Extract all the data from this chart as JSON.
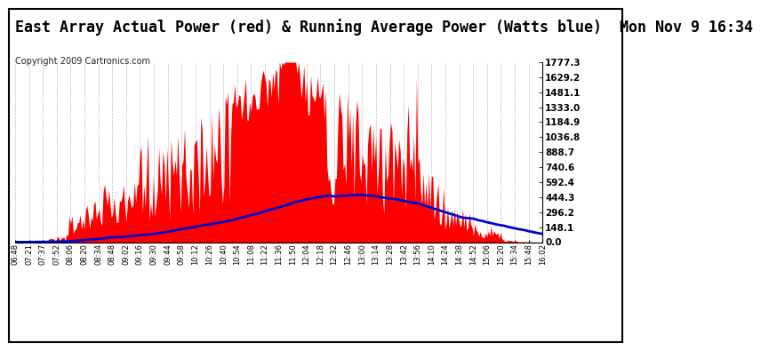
{
  "title": "East Array Actual Power (red) & Running Average Power (Watts blue)  Mon Nov 9 16:34",
  "copyright": "Copyright 2009 Cartronics.com",
  "ylabel_right_values": [
    1777.3,
    1629.2,
    1481.1,
    1333.0,
    1184.9,
    1036.8,
    888.7,
    740.6,
    592.4,
    444.3,
    296.2,
    148.1,
    0.0
  ],
  "ymax": 1777.3,
  "ymin": 0.0,
  "background_color": "#ffffff",
  "plot_bg_color": "#ffffff",
  "grid_color": "#bbbbbb",
  "bar_color": "#ff0000",
  "line_color": "#0000cc",
  "title_fontsize": 12,
  "copyright_fontsize": 7,
  "x_labels": [
    "06:48",
    "07:21",
    "07:37",
    "07:52",
    "08:06",
    "08:20",
    "08:34",
    "08:48",
    "09:02",
    "09:16",
    "09:30",
    "09:44",
    "09:58",
    "10:12",
    "10:26",
    "10:40",
    "10:54",
    "11:08",
    "11:22",
    "11:36",
    "11:50",
    "12:04",
    "12:18",
    "12:32",
    "12:46",
    "13:00",
    "13:14",
    "13:28",
    "13:42",
    "13:56",
    "14:10",
    "14:24",
    "14:38",
    "14:52",
    "15:06",
    "15:20",
    "15:34",
    "15:48",
    "16:02"
  ]
}
